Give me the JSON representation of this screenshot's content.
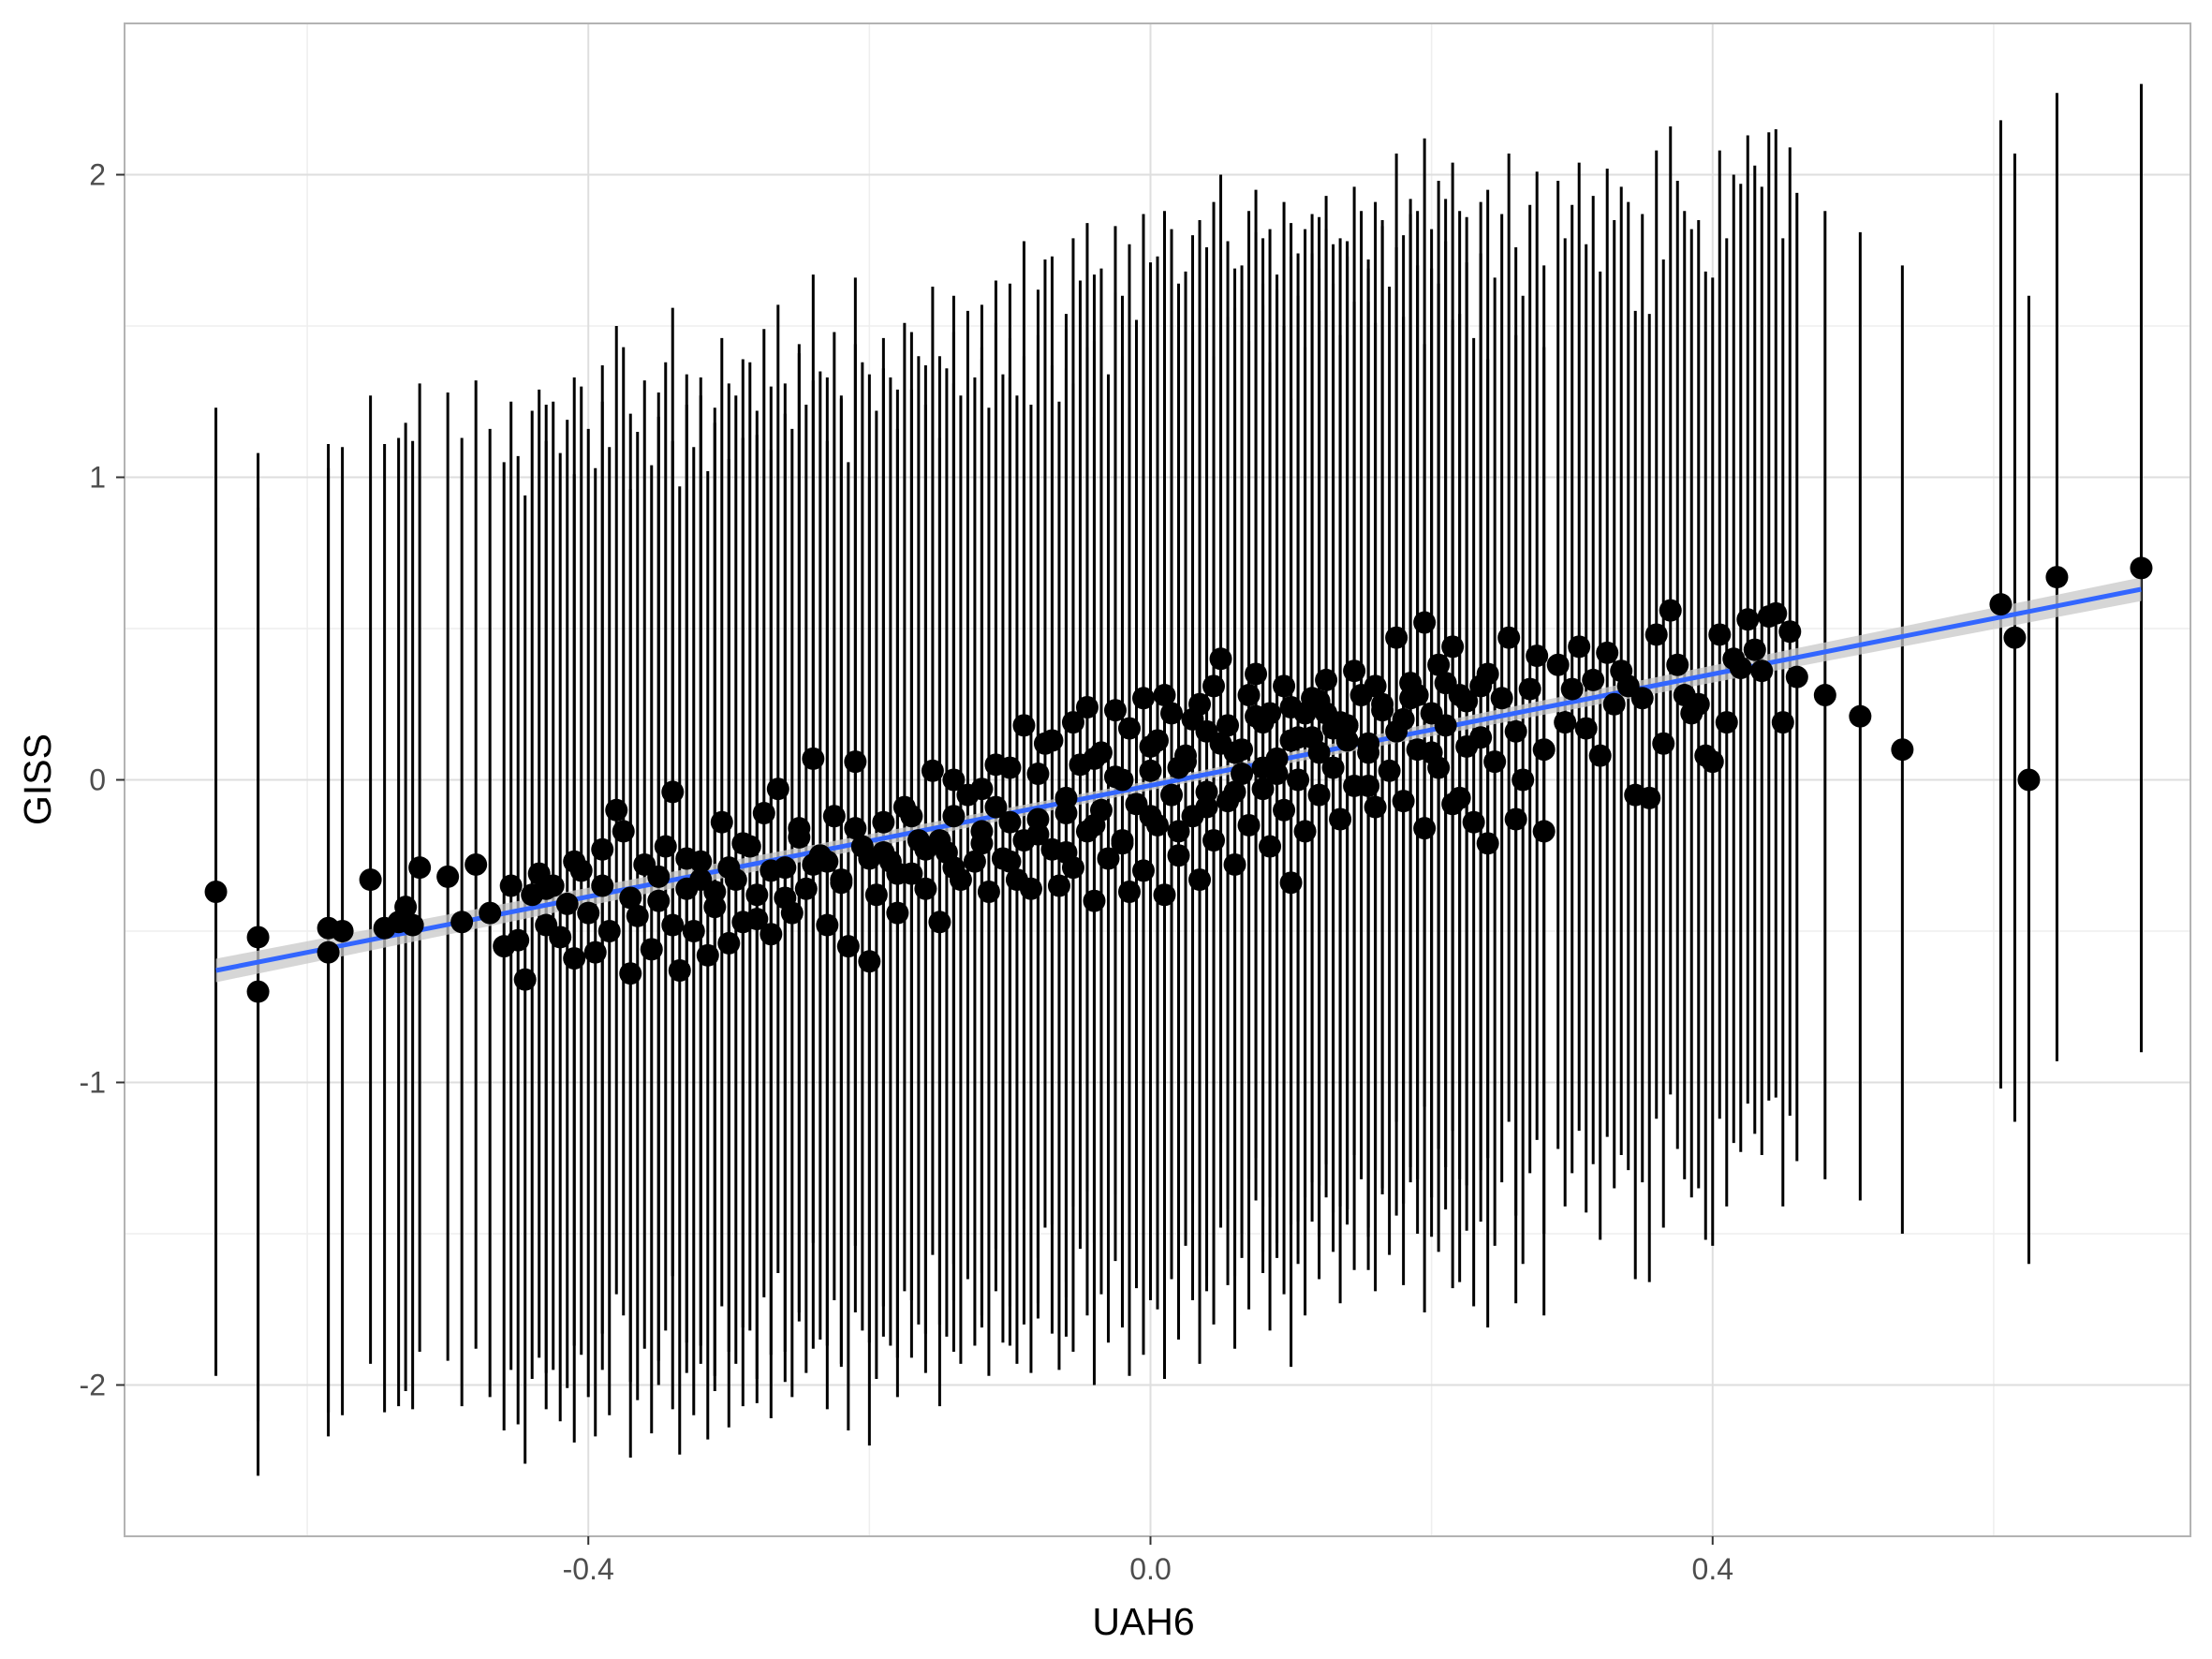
{
  "chart_data": {
    "type": "scatter",
    "title": "",
    "xlabel": "UAH6",
    "ylabel": "GISS",
    "xlim": [
      -0.73,
      0.74
    ],
    "ylim": [
      -2.5,
      2.5
    ],
    "x_ticks": [
      -0.4,
      0.0,
      0.4
    ],
    "x_tick_labels": [
      "-0.4",
      "0.0",
      "0.4"
    ],
    "y_ticks": [
      -2,
      -1,
      0,
      1,
      2
    ],
    "y_tick_labels": [
      "-2",
      "-1",
      "0",
      "1",
      "2"
    ],
    "grid": true,
    "theme": "light",
    "legend": "none",
    "colors": {
      "points": "#000000",
      "errorbars": "#000000",
      "fit_line": "#3366FF",
      "confidence_band": "#c8c8c8",
      "grid_major": "#dedede",
      "grid_minor": "#eeeeee",
      "panel_border": "#b3b3b3"
    },
    "error_bar_half_width": 1.6,
    "fit": {
      "method": "lm",
      "x": [
        -0.665,
        0.705
      ],
      "y": [
        -0.63,
        0.63
      ],
      "se_band": 0.03
    },
    "points": [
      [
        -0.665,
        -0.37
      ],
      [
        -0.635,
        -0.52
      ],
      [
        -0.635,
        -0.7
      ],
      [
        -0.585,
        -0.49
      ],
      [
        -0.585,
        -0.57
      ],
      [
        -0.575,
        -0.5
      ],
      [
        -0.555,
        -0.33
      ],
      [
        -0.545,
        -0.49
      ],
      [
        -0.535,
        -0.47
      ],
      [
        -0.53,
        -0.42
      ],
      [
        -0.525,
        -0.48
      ],
      [
        -0.52,
        -0.29
      ],
      [
        -0.5,
        -0.32
      ],
      [
        -0.49,
        -0.47
      ],
      [
        -0.48,
        -0.28
      ],
      [
        -0.47,
        -0.44
      ],
      [
        -0.46,
        -0.55
      ],
      [
        -0.455,
        -0.35
      ],
      [
        -0.45,
        -0.53
      ],
      [
        -0.445,
        -0.66
      ],
      [
        -0.44,
        -0.38
      ],
      [
        -0.435,
        -0.31
      ],
      [
        -0.43,
        -0.48
      ],
      [
        -0.425,
        -0.35
      ],
      [
        -0.42,
        -0.52
      ],
      [
        -0.415,
        -0.41
      ],
      [
        -0.41,
        -0.59
      ],
      [
        -0.405,
        -0.3
      ],
      [
        -0.4,
        -0.44
      ],
      [
        -0.395,
        -0.57
      ],
      [
        -0.39,
        -0.35
      ],
      [
        -0.385,
        -0.5
      ],
      [
        -0.38,
        -0.1
      ],
      [
        -0.375,
        -0.17
      ],
      [
        -0.37,
        -0.64
      ],
      [
        -0.365,
        -0.45
      ],
      [
        -0.36,
        -0.28
      ],
      [
        -0.355,
        -0.56
      ],
      [
        -0.35,
        -0.4
      ],
      [
        -0.345,
        -0.22
      ],
      [
        -0.34,
        -0.48
      ],
      [
        -0.335,
        -0.63
      ],
      [
        -0.33,
        -0.36
      ],
      [
        -0.325,
        -0.5
      ],
      [
        -0.32,
        -0.27
      ],
      [
        -0.315,
        -0.58
      ],
      [
        -0.31,
        -0.42
      ],
      [
        -0.305,
        -0.14
      ],
      [
        -0.3,
        -0.54
      ],
      [
        -0.295,
        -0.33
      ],
      [
        -0.29,
        -0.47
      ],
      [
        -0.285,
        -0.22
      ],
      [
        -0.28,
        -0.38
      ],
      [
        -0.275,
        -0.11
      ],
      [
        -0.27,
        -0.51
      ],
      [
        -0.265,
        -0.03
      ],
      [
        -0.26,
        -0.29
      ],
      [
        -0.255,
        -0.44
      ],
      [
        -0.25,
        -0.16
      ],
      [
        -0.245,
        -0.36
      ],
      [
        -0.24,
        0.07
      ],
      [
        -0.235,
        -0.25
      ],
      [
        -0.23,
        -0.48
      ],
      [
        -0.225,
        -0.12
      ],
      [
        -0.22,
        -0.33
      ],
      [
        -0.215,
        -0.55
      ],
      [
        -0.21,
        0.06
      ],
      [
        -0.205,
        -0.22
      ],
      [
        -0.2,
        -0.6
      ],
      [
        -0.195,
        -0.38
      ],
      [
        -0.19,
        -0.14
      ],
      [
        -0.185,
        -0.27
      ],
      [
        -0.18,
        -0.44
      ],
      [
        -0.175,
        -0.09
      ],
      [
        -0.17,
        -0.31
      ],
      [
        -0.165,
        -0.2
      ],
      [
        -0.16,
        -0.36
      ],
      [
        -0.155,
        0.03
      ],
      [
        -0.15,
        -0.47
      ],
      [
        -0.145,
        -0.24
      ],
      [
        -0.14,
        -0.12
      ],
      [
        -0.135,
        -0.33
      ],
      [
        -0.13,
        -0.05
      ],
      [
        -0.125,
        -0.27
      ],
      [
        -0.12,
        -0.17
      ],
      [
        -0.115,
        -0.37
      ],
      [
        -0.11,
        -0.09
      ],
      [
        -0.105,
        -0.26
      ],
      [
        -0.1,
        0.04
      ],
      [
        -0.095,
        -0.33
      ],
      [
        -0.09,
        -0.2
      ],
      [
        -0.085,
        -0.36
      ],
      [
        -0.08,
        -0.13
      ],
      [
        -0.075,
        0.12
      ],
      [
        -0.07,
        -0.23
      ],
      [
        -0.065,
        -0.35
      ],
      [
        -0.06,
        -0.06
      ],
      [
        -0.055,
        -0.29
      ],
      [
        -0.05,
        0.05
      ],
      [
        -0.045,
        -0.17
      ],
      [
        -0.04,
        -0.4
      ],
      [
        -0.035,
        -0.1
      ],
      [
        -0.03,
        -0.26
      ],
      [
        -0.025,
        0.01
      ],
      [
        -0.02,
        -0.21
      ],
      [
        -0.015,
        -0.37
      ],
      [
        -0.01,
        -0.08
      ],
      [
        -0.005,
        -0.3
      ],
      [
        0.0,
        0.03
      ],
      [
        0.005,
        -0.15
      ],
      [
        0.01,
        -0.38
      ],
      [
        0.015,
        -0.05
      ],
      [
        0.02,
        -0.25
      ],
      [
        0.025,
        0.08
      ],
      [
        0.03,
        -0.12
      ],
      [
        0.035,
        -0.33
      ],
      [
        0.04,
        -0.04
      ],
      [
        0.045,
        -0.2
      ],
      [
        0.05,
        0.12
      ],
      [
        0.055,
        -0.07
      ],
      [
        0.06,
        -0.28
      ],
      [
        0.065,
        0.02
      ],
      [
        0.07,
        -0.15
      ],
      [
        0.075,
        0.21
      ],
      [
        0.08,
        -0.03
      ],
      [
        0.085,
        -0.22
      ],
      [
        0.09,
        0.07
      ],
      [
        0.095,
        -0.1
      ],
      [
        0.1,
        0.24
      ],
      [
        0.105,
        0.0
      ],
      [
        0.11,
        -0.17
      ],
      [
        0.115,
        0.14
      ],
      [
        0.12,
        -0.05
      ],
      [
        0.125,
        0.22
      ],
      [
        0.13,
        0.04
      ],
      [
        0.135,
        -0.13
      ],
      [
        0.14,
        0.18
      ],
      [
        0.145,
        -0.02
      ],
      [
        0.15,
        0.28
      ],
      [
        0.155,
        0.09
      ],
      [
        0.16,
        -0.09
      ],
      [
        0.165,
        0.23
      ],
      [
        0.17,
        0.03
      ],
      [
        0.175,
        0.16
      ],
      [
        0.18,
        -0.07
      ],
      [
        0.185,
        0.27
      ],
      [
        0.19,
        0.1
      ],
      [
        0.195,
        -0.16
      ],
      [
        0.2,
        0.22
      ],
      [
        0.205,
        0.04
      ],
      [
        0.21,
        0.18
      ],
      [
        0.215,
        -0.08
      ],
      [
        0.22,
        0.28
      ],
      [
        0.225,
        0.11
      ],
      [
        0.23,
        -0.14
      ],
      [
        0.235,
        0.14
      ],
      [
        0.24,
        0.35
      ],
      [
        0.245,
        0.06
      ],
      [
        0.25,
        0.27
      ],
      [
        0.255,
        0.47
      ],
      [
        0.26,
        0.16
      ],
      [
        0.265,
        0.0
      ],
      [
        0.27,
        0.3
      ],
      [
        0.275,
        0.41
      ],
      [
        0.28,
        0.1
      ],
      [
        -0.055,
        0.19
      ],
      [
        -0.045,
        0.24
      ],
      [
        -0.035,
        0.09
      ],
      [
        -0.025,
        0.23
      ],
      [
        -0.015,
        0.17
      ],
      [
        -0.005,
        0.27
      ],
      [
        0.005,
        0.13
      ],
      [
        0.015,
        0.22
      ],
      [
        0.025,
        0.06
      ],
      [
        0.035,
        0.25
      ],
      [
        0.045,
        0.31
      ],
      [
        0.055,
        0.18
      ],
      [
        0.065,
        0.1
      ],
      [
        0.075,
        0.35
      ],
      [
        0.085,
        0.22
      ],
      [
        0.095,
        0.31
      ],
      [
        0.105,
        0.14
      ],
      [
        0.115,
        0.27
      ],
      [
        0.125,
        0.33
      ],
      [
        0.135,
        0.19
      ],
      [
        0.145,
        0.36
      ],
      [
        0.155,
        0.12
      ],
      [
        0.165,
        0.25
      ],
      [
        0.175,
        0.47
      ],
      [
        0.185,
        0.32
      ],
      [
        0.195,
        0.52
      ],
      [
        0.205,
        0.38
      ],
      [
        0.215,
        0.44
      ],
      [
        0.225,
        0.26
      ],
      [
        0.235,
        0.31
      ],
      [
        -0.34,
        -0.04
      ],
      [
        -0.32,
        -0.33
      ],
      [
        -0.3,
        -0.29
      ],
      [
        -0.28,
        -0.46
      ],
      [
        -0.26,
        -0.39
      ],
      [
        -0.24,
        -0.28
      ],
      [
        -0.22,
        -0.34
      ],
      [
        -0.2,
        -0.26
      ],
      [
        -0.18,
        -0.31
      ],
      [
        -0.16,
        -0.23
      ],
      [
        -0.14,
        -0.29
      ],
      [
        -0.12,
        -0.21
      ],
      [
        -0.1,
        -0.27
      ],
      [
        -0.08,
        -0.18
      ],
      [
        -0.06,
        -0.24
      ],
      [
        -0.04,
        -0.15
      ],
      [
        -0.02,
        -0.2
      ],
      [
        0.0,
        -0.12
      ],
      [
        0.02,
        -0.17
      ],
      [
        0.04,
        -0.09
      ],
      [
        -0.14,
        0.0
      ],
      [
        -0.12,
        -0.03
      ],
      [
        -0.1,
        -0.14
      ],
      [
        -0.08,
        0.02
      ],
      [
        -0.06,
        -0.11
      ],
      [
        -0.04,
        0.07
      ],
      [
        -0.02,
        0.0
      ],
      [
        0.0,
        0.11
      ],
      [
        0.02,
        0.04
      ],
      [
        0.04,
        0.16
      ],
      [
        0.06,
        0.09
      ],
      [
        0.08,
        0.19
      ],
      [
        0.1,
        0.13
      ],
      [
        0.12,
        0.26
      ],
      [
        0.14,
        0.18
      ],
      [
        -0.43,
        -0.36
      ],
      [
        -0.41,
        -0.27
      ],
      [
        -0.39,
        -0.23
      ],
      [
        -0.37,
        -0.39
      ],
      [
        -0.35,
        -0.32
      ],
      [
        -0.33,
        -0.26
      ],
      [
        -0.31,
        -0.37
      ],
      [
        -0.29,
        -0.21
      ],
      [
        -0.27,
        -0.3
      ],
      [
        -0.25,
        -0.19
      ],
      [
        -0.23,
        -0.27
      ],
      [
        -0.21,
        -0.16
      ],
      [
        -0.19,
        -0.24
      ],
      [
        -0.17,
        -0.12
      ],
      [
        -0.15,
        -0.2
      ],
      [
        0.29,
        0.38
      ],
      [
        0.295,
        0.19
      ],
      [
        0.3,
        0.3
      ],
      [
        0.305,
        0.44
      ],
      [
        0.31,
        0.17
      ],
      [
        0.315,
        0.33
      ],
      [
        0.32,
        0.08
      ],
      [
        0.325,
        0.42
      ],
      [
        0.33,
        0.25
      ],
      [
        0.335,
        0.36
      ],
      [
        0.34,
        0.31
      ],
      [
        0.345,
        -0.05
      ],
      [
        0.35,
        0.27
      ],
      [
        0.355,
        -0.06
      ],
      [
        0.36,
        0.48
      ],
      [
        0.365,
        0.12
      ],
      [
        0.37,
        0.56
      ],
      [
        0.375,
        0.38
      ],
      [
        0.38,
        0.28
      ],
      [
        0.385,
        0.22
      ],
      [
        0.39,
        0.25
      ],
      [
        0.395,
        0.08
      ],
      [
        0.4,
        0.06
      ],
      [
        0.405,
        0.48
      ],
      [
        0.41,
        0.19
      ],
      [
        0.415,
        0.4
      ],
      [
        0.42,
        0.37
      ],
      [
        0.425,
        0.53
      ],
      [
        0.43,
        0.43
      ],
      [
        0.435,
        0.36
      ],
      [
        0.44,
        0.54
      ],
      [
        0.445,
        0.55
      ],
      [
        0.45,
        0.19
      ],
      [
        0.455,
        0.49
      ],
      [
        0.46,
        0.34
      ],
      [
        0.48,
        0.28
      ],
      [
        0.505,
        0.21
      ],
      [
        0.535,
        0.1
      ],
      [
        0.605,
        0.58
      ],
      [
        0.615,
        0.47
      ],
      [
        0.625,
        0.0
      ],
      [
        0.645,
        0.67
      ],
      [
        0.705,
        0.7
      ],
      [
        0.12,
        0.09
      ],
      [
        0.13,
        0.17
      ],
      [
        0.11,
        0.22
      ],
      [
        0.09,
        0.02
      ],
      [
        0.07,
        0.28
      ],
      [
        0.05,
        0.4
      ],
      [
        -0.07,
        0.13
      ],
      [
        -0.09,
        0.18
      ],
      [
        -0.11,
        0.05
      ],
      [
        0.03,
        0.2
      ],
      [
        0.01,
        0.28
      ],
      [
        0.06,
        -0.04
      ],
      [
        0.08,
        0.04
      ],
      [
        0.16,
        0.31
      ],
      [
        0.18,
        0.2
      ],
      [
        0.2,
        0.09
      ],
      [
        0.22,
        -0.06
      ],
      [
        0.24,
        -0.21
      ],
      [
        0.26,
        -0.13
      ],
      [
        0.28,
        -0.17
      ],
      [
        0.1,
        -0.34
      ],
      [
        0.14,
        0.13
      ],
      [
        0.155,
        -0.02
      ],
      [
        0.19,
        0.28
      ],
      [
        0.21,
        0.32
      ]
    ]
  }
}
